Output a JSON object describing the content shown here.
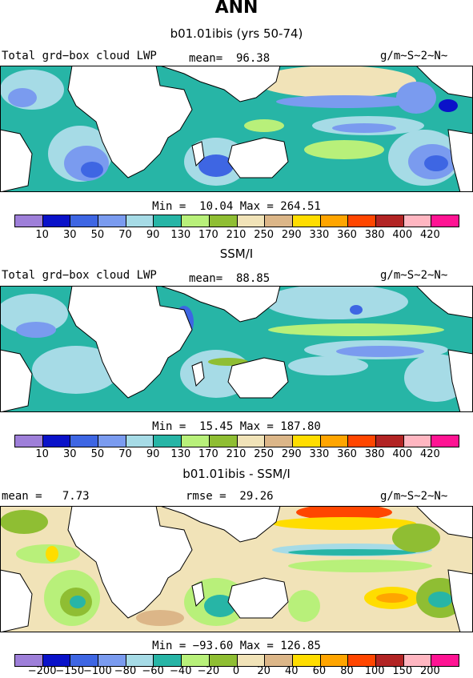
{
  "title": "ANN",
  "colors": {
    "c1": "#9e7fd9",
    "c2": "#0a12c9",
    "c3": "#3e66e3",
    "c4": "#7a9bef",
    "c5": "#a6dbe6",
    "c6": "#27b5a6",
    "c7": "#b8f07a",
    "c8": "#8fbe33",
    "c9": "#f1e3b8",
    "c10": "#dcb688",
    "c11": "#ffdd00",
    "c12": "#ffa500",
    "c13": "#ff4600",
    "c14": "#b22424",
    "c15": "#ffb6c1",
    "c16": "#ff1493",
    "land": "#ffffff",
    "coast": "#000000"
  },
  "panels": [
    {
      "subtitle": "b01.01ibis (yrs 50-74)",
      "left_label": "Total grd−box cloud LWP",
      "mid_label": "mean=  96.38",
      "units": "g/m~S~2~N~",
      "stats": "Min =  10.04 Max = 264.51",
      "ticks": [
        "10",
        "30",
        "50",
        "70",
        "90",
        "130",
        "170",
        "210",
        "250",
        "290",
        "330",
        "360",
        "380",
        "400",
        "420"
      ]
    },
    {
      "subtitle": "SSM/I",
      "left_label": "Total grd−box cloud LWP",
      "mid_label": "mean=  88.85",
      "units": "g/m~S~2~N~",
      "stats": "Min =  15.45 Max = 187.80",
      "ticks": [
        "10",
        "30",
        "50",
        "70",
        "90",
        "130",
        "170",
        "210",
        "250",
        "290",
        "330",
        "360",
        "380",
        "400",
        "420"
      ]
    },
    {
      "subtitle": "b01.01ibis - SSM/I",
      "left_label": "mean =   7.73",
      "mid_label": "rmse =  29.26",
      "units": "g/m~S~2~N~",
      "stats": "Min = −93.60 Max = 126.85",
      "ticks": [
        "−200",
        "−150",
        "−100",
        "−80",
        "−60",
        "−40",
        "−20",
        "0",
        "20",
        "40",
        "60",
        "80",
        "100",
        "150",
        "200"
      ]
    }
  ]
}
